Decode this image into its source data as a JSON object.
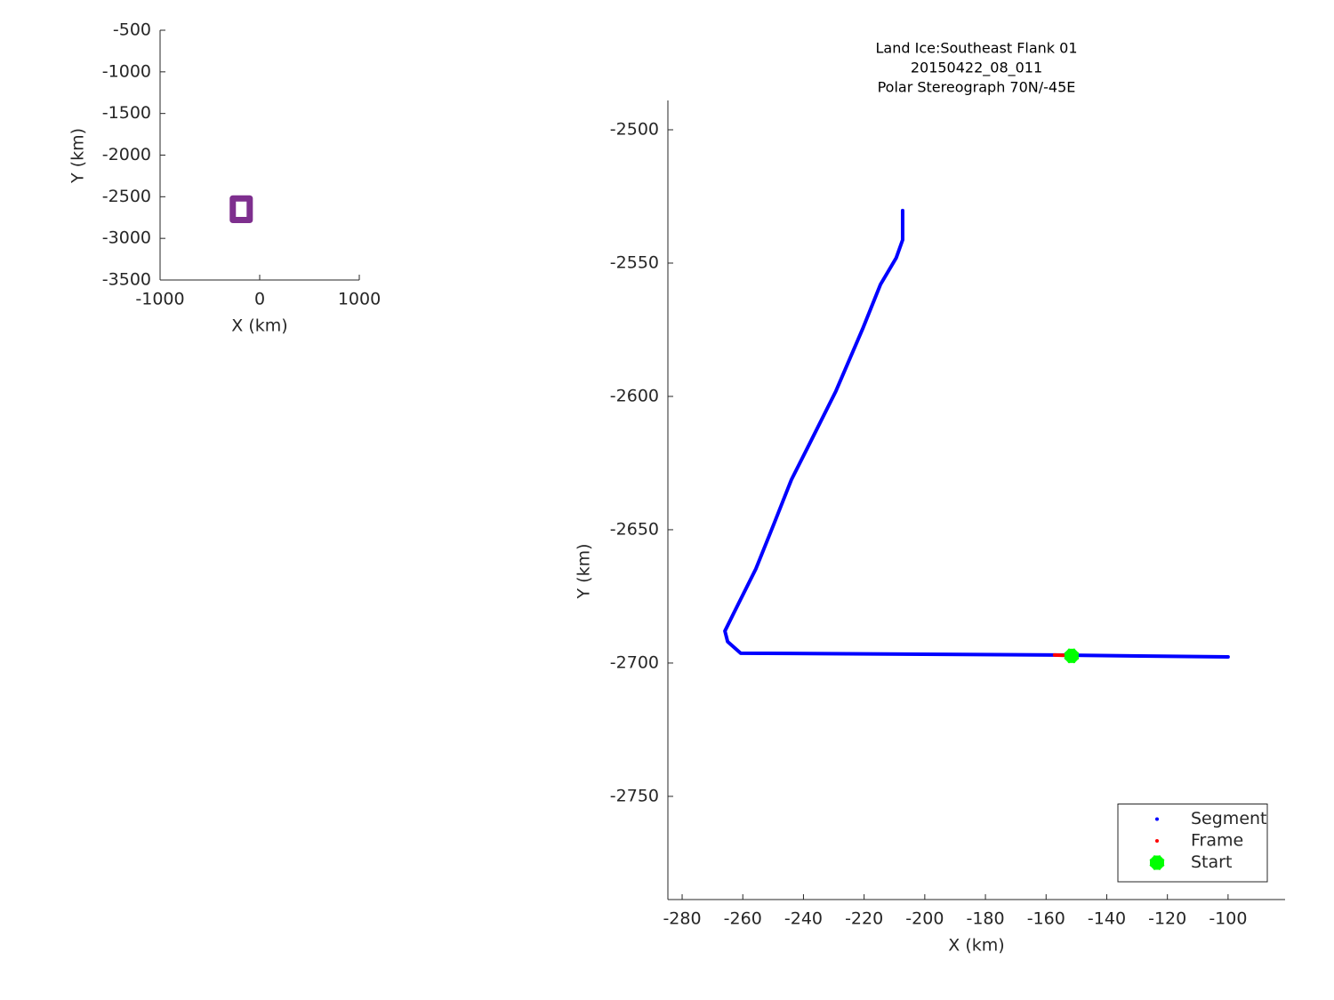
{
  "chart_data": [
    {
      "type": "line",
      "xlabel": "X (km)",
      "ylabel": "Y (km)",
      "xlim": [
        -1000,
        1000
      ],
      "ylim": [
        -3500,
        -500
      ],
      "xticks": [
        -1000,
        0,
        1000
      ],
      "yticks": [
        -500,
        -1000,
        -1500,
        -2000,
        -2500,
        -3000,
        -3500
      ],
      "series": [
        {
          "color": "#7e2f8e",
          "style": "thick-line",
          "x": [
            -270,
            -100,
            -100,
            -270,
            -270
          ],
          "values": [
            -2520,
            -2520,
            -2780,
            -2780,
            -2520
          ]
        }
      ]
    },
    {
      "type": "line",
      "title": [
        "Land Ice:Southeast Flank 01",
        "20150422_08_011",
        "Polar Stereograph 70N/-45E"
      ],
      "xlabel": "X (km)",
      "ylabel": "Y (km)",
      "xlim": [
        -284.7,
        -81.2
      ],
      "ylim": [
        -2788.7,
        -2489
      ],
      "xticks": [
        -280,
        -260,
        -240,
        -220,
        -200,
        -180,
        -160,
        -140,
        -120,
        -100
      ],
      "yticks": [
        -2500,
        -2550,
        -2600,
        -2650,
        -2700,
        -2750
      ],
      "legend": "southeast",
      "series": [
        {
          "name": "Segment",
          "color": "#0000ff",
          "style": "line",
          "x": [
            -207.3,
            -207.3,
            -209.4,
            -214.6,
            -220.5,
            -229.3,
            -238.1,
            -244,
            -249.8,
            -255.7,
            -263,
            -265.9,
            -265,
            -260.7,
            -157.5,
            -100
          ],
          "values": [
            -2530.3,
            -2541.3,
            -2548,
            -2558,
            -2574.7,
            -2598,
            -2618,
            -2631.3,
            -2648,
            -2664.7,
            -2681.3,
            -2688,
            -2692,
            -2696.3,
            -2697,
            -2697.7
          ]
        },
        {
          "name": "Frame",
          "color": "#ff0000",
          "style": "line",
          "x": [
            -157.2,
            -154.2
          ],
          "values": [
            -2697,
            -2697.1
          ]
        },
        {
          "name": "Start",
          "color": "#00ff00",
          "style": "marker",
          "x": [
            -151.6
          ],
          "values": [
            -2697.3
          ]
        }
      ]
    }
  ]
}
